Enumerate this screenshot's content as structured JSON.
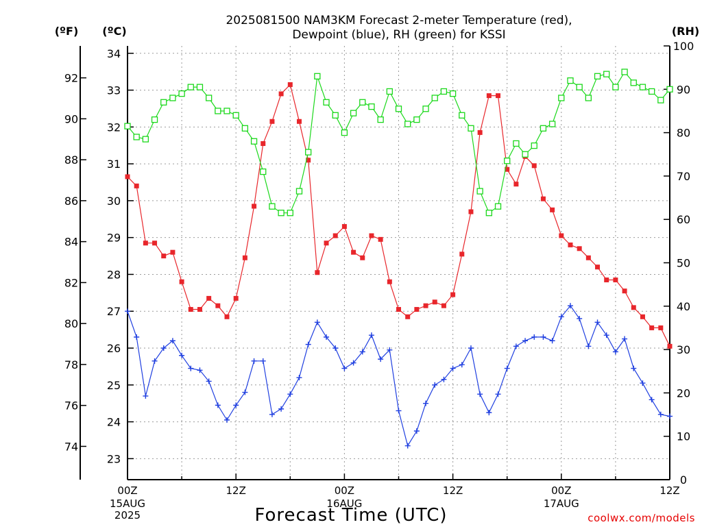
{
  "header": {
    "title_line1": "2025081500 NAM3KM Forecast 2-meter Temperature (red),",
    "title_line2": "Dewpoint (blue), RH (green) for KSSI"
  },
  "units": {
    "fahrenheit": "(ºF)",
    "celsius": "(ºC)",
    "rh": "(RH)"
  },
  "footer": {
    "credit": "coolwx.com/models"
  },
  "colors": {
    "temperature": "#e8262b",
    "dewpoint": "#1f3fe0",
    "rh": "#1ad81a",
    "grid": "#9a9a9a"
  },
  "chart_data": {
    "type": "line",
    "title": "2025081500 NAM3KM Forecast 2-meter Temperature (red), Dewpoint (blue), RH (green) for KSSI",
    "xlabel": "Forecast Time (UTC)",
    "x_hours": [
      0,
      1,
      2,
      3,
      4,
      5,
      6,
      7,
      8,
      9,
      10,
      11,
      12,
      13,
      14,
      15,
      16,
      17,
      18,
      19,
      20,
      21,
      22,
      23,
      24,
      25,
      26,
      27,
      28,
      29,
      30,
      31,
      32,
      33,
      34,
      35,
      36,
      37,
      38,
      39,
      40,
      41,
      42,
      43,
      44,
      45,
      46,
      47,
      48,
      49,
      50,
      51,
      52,
      53,
      54,
      55,
      56,
      57,
      58,
      59,
      60
    ],
    "x_ticks": [
      {
        "hour": 0,
        "label": "00Z",
        "date": "15AUG",
        "year": "2025"
      },
      {
        "hour": 12,
        "label": "12Z",
        "date": "",
        "year": ""
      },
      {
        "hour": 24,
        "label": "00Z",
        "date": "16AUG",
        "year": ""
      },
      {
        "hour": 36,
        "label": "12Z",
        "date": "",
        "year": ""
      },
      {
        "hour": 48,
        "label": "00Z",
        "date": "17AUG",
        "year": ""
      },
      {
        "hour": 60,
        "label": "12Z",
        "date": "",
        "year": ""
      }
    ],
    "celsius_ticks": [
      23,
      24,
      25,
      26,
      27,
      28,
      29,
      30,
      31,
      32,
      33,
      34
    ],
    "fahrenheit_ticks": [
      74,
      76,
      78,
      80,
      82,
      84,
      86,
      88,
      90,
      92
    ],
    "rh_ticks": [
      0,
      10,
      20,
      30,
      40,
      50,
      60,
      70,
      80,
      90,
      100
    ],
    "ylim_celsius": [
      22.43,
      34.2
    ],
    "ylim_rh": [
      0,
      100
    ],
    "grid": true,
    "series": [
      {
        "name": "Temperature",
        "axis": "celsius",
        "marker": "filled-square",
        "values": [
          30.65,
          30.4,
          28.85,
          28.85,
          28.5,
          28.6,
          27.8,
          27.05,
          27.05,
          27.35,
          27.15,
          26.85,
          27.35,
          28.45,
          29.85,
          31.55,
          32.15,
          32.9,
          33.15,
          32.15,
          31.1,
          28.05,
          28.85,
          29.05,
          29.3,
          28.6,
          28.45,
          29.05,
          28.95,
          27.8,
          27.05,
          26.85,
          27.05,
          27.15,
          27.25,
          27.15,
          27.45,
          28.55,
          29.7,
          31.85,
          32.85,
          32.85,
          30.85,
          30.45,
          31.2,
          30.95,
          30.05,
          29.75,
          29.05,
          28.8,
          28.7,
          28.45,
          28.2,
          27.85,
          27.85,
          27.55,
          27.1,
          26.85,
          26.55,
          26.55,
          26.05
        ]
      },
      {
        "name": "Dewpoint",
        "axis": "celsius",
        "marker": "plus",
        "values": [
          27.0,
          26.3,
          24.7,
          25.65,
          26.0,
          26.2,
          25.8,
          25.45,
          25.4,
          25.1,
          24.45,
          24.05,
          24.45,
          24.8,
          25.65,
          25.65,
          24.2,
          24.35,
          24.75,
          25.2,
          26.1,
          26.7,
          26.3,
          26.0,
          25.45,
          25.6,
          25.9,
          26.35,
          25.7,
          25.95,
          24.3,
          23.35,
          23.75,
          24.5,
          25.0,
          25.15,
          25.45,
          25.55,
          26.0,
          24.75,
          24.25,
          24.75,
          25.45,
          26.05,
          26.2,
          26.3,
          26.3,
          26.2,
          26.85,
          27.15,
          26.8,
          26.05,
          26.7,
          26.35,
          25.9,
          26.25,
          25.45,
          25.05,
          24.6,
          24.2,
          24.15
        ]
      },
      {
        "name": "RH",
        "axis": "rh",
        "marker": "open-square",
        "values": [
          81.5,
          79,
          78.5,
          83,
          87,
          88,
          89,
          90.5,
          90.5,
          88,
          85,
          85,
          84,
          81,
          78,
          71,
          63,
          61.5,
          61.5,
          66.5,
          75.5,
          93,
          87,
          84,
          80,
          84.5,
          87,
          86,
          83,
          89.5,
          85.5,
          82,
          83,
          85.5,
          88,
          89.5,
          89,
          84,
          81,
          66.5,
          61.5,
          63,
          73.5,
          77.5,
          75,
          77,
          81,
          82,
          88,
          92,
          90.5,
          88,
          93,
          93.5,
          90.5,
          94,
          91.5,
          90.5,
          89.5,
          87.5,
          90
        ]
      }
    ]
  }
}
